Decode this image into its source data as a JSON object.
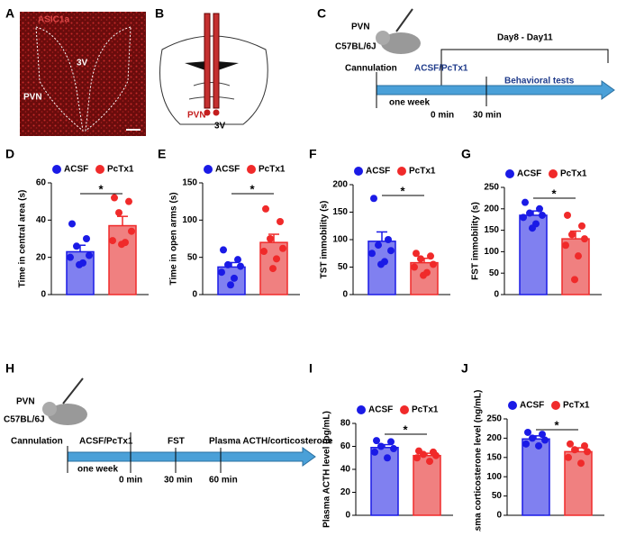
{
  "chart_data": [
    {
      "type": "bar",
      "label": "D",
      "ylabel": "Time in central area (s)",
      "ylim": [
        0,
        60
      ],
      "yticks": [
        0,
        20,
        40,
        60
      ],
      "annotation": "*",
      "series": [
        {
          "name": "ACSF",
          "color": "#1a1ae6",
          "fill": "#8080f0",
          "values": [
            23
          ],
          "errors": [
            3.5
          ],
          "points": [
            38,
            30,
            26,
            21,
            20,
            17,
            16
          ]
        },
        {
          "name": "PcTx1",
          "color": "#f02a2a",
          "fill": "#f08080",
          "values": [
            37
          ],
          "errors": [
            5
          ],
          "points": [
            52,
            50,
            44,
            34,
            29,
            28,
            27
          ]
        }
      ]
    },
    {
      "type": "bar",
      "label": "E",
      "ylabel": "Time in open arms (s)",
      "ylim": [
        0,
        150
      ],
      "yticks": [
        0,
        50,
        100,
        150
      ],
      "annotation": "*",
      "series": [
        {
          "name": "ACSF",
          "color": "#1a1ae6",
          "fill": "#8080f0",
          "values": [
            37
          ],
          "errors": [
            6
          ],
          "points": [
            60,
            47,
            40,
            38,
            30,
            22,
            13
          ]
        },
        {
          "name": "PcTx1",
          "color": "#f02a2a",
          "fill": "#f08080",
          "values": [
            70
          ],
          "errors": [
            11
          ],
          "points": [
            115,
            98,
            75,
            62,
            58,
            48,
            35
          ]
        }
      ]
    },
    {
      "type": "bar",
      "label": "F",
      "ylabel": "TST immobility (s)",
      "ylim": [
        0,
        200
      ],
      "yticks": [
        0,
        50,
        100,
        150,
        200
      ],
      "annotation": "*",
      "series": [
        {
          "name": "ACSF",
          "color": "#1a1ae6",
          "fill": "#8080f0",
          "values": [
            97
          ],
          "errors": [
            17
          ],
          "points": [
            175,
            100,
            90,
            80,
            75,
            60,
            55
          ]
        },
        {
          "name": "PcTx1",
          "color": "#f02a2a",
          "fill": "#f08080",
          "values": [
            58
          ],
          "errors": [
            8
          ],
          "points": [
            75,
            70,
            65,
            55,
            50,
            40,
            35
          ]
        }
      ]
    },
    {
      "type": "bar",
      "label": "G",
      "ylabel": "FST immobility (s)",
      "ylim": [
        0,
        250
      ],
      "yticks": [
        0,
        50,
        100,
        150,
        200,
        250
      ],
      "annotation": "*",
      "series": [
        {
          "name": "ACSF",
          "color": "#1a1ae6",
          "fill": "#8080f0",
          "values": [
            185
          ],
          "errors": [
            10
          ],
          "points": [
            215,
            200,
            190,
            185,
            180,
            165,
            155
          ]
        },
        {
          "name": "PcTx1",
          "color": "#f02a2a",
          "fill": "#f08080",
          "values": [
            130
          ],
          "errors": [
            18
          ],
          "points": [
            185,
            160,
            140,
            130,
            115,
            90,
            35
          ]
        }
      ]
    },
    {
      "type": "bar",
      "label": "I",
      "ylabel": "Plasma ACTH level (pg/mL)",
      "ylim": [
        0,
        80
      ],
      "yticks": [
        0,
        20,
        40,
        60,
        80
      ],
      "annotation": "*",
      "series": [
        {
          "name": "ACSF",
          "color": "#1a1ae6",
          "fill": "#8080f0",
          "values": [
            59
          ],
          "errors": [
            2.5
          ],
          "points": [
            65,
            64,
            60,
            58,
            55,
            50
          ]
        },
        {
          "name": "PcTx1",
          "color": "#f02a2a",
          "fill": "#f08080",
          "values": [
            52
          ],
          "errors": [
            2
          ],
          "points": [
            56,
            55,
            53,
            52,
            50,
            47
          ]
        }
      ]
    },
    {
      "type": "bar",
      "label": "J",
      "ylabel": "Plasma corticosterone level (ng/mL)",
      "ylim": [
        0,
        250
      ],
      "yticks": [
        0,
        50,
        100,
        150,
        200,
        250
      ],
      "annotation": "*",
      "series": [
        {
          "name": "ACSF",
          "color": "#1a1ae6",
          "fill": "#8080f0",
          "values": [
            198
          ],
          "errors": [
            8
          ],
          "points": [
            215,
            210,
            200,
            195,
            185,
            180
          ]
        },
        {
          "name": "PcTx1",
          "color": "#f02a2a",
          "fill": "#f08080",
          "values": [
            165
          ],
          "errors": [
            10
          ],
          "points": [
            185,
            180,
            170,
            165,
            150,
            135
          ]
        }
      ]
    }
  ],
  "panels": {
    "A": {
      "label": "A",
      "stain": "ASIC1a",
      "ventricle": "3V",
      "region": "PVN"
    },
    "B": {
      "label": "B",
      "region": "PVN",
      "ventricle": "3V"
    },
    "C": {
      "label": "C",
      "site": "PVN",
      "strain": "C57BL/6J",
      "step1": "Cannulation",
      "window": "Day8 - Day11",
      "drug": "ACSF/PcTx1",
      "tests": "Behavioral tests",
      "period": "one week",
      "t0": "0 min",
      "t1": "30 min"
    },
    "H": {
      "label": "H",
      "site": "PVN",
      "strain": "C57BL/6J",
      "step1": "Cannulation",
      "drug": "ACSF/PcTx1",
      "test": "FST",
      "sample": "Plasma ACTH/corticosterone",
      "period": "one week",
      "t0": "0 min",
      "t1": "30 min",
      "t2": "60 min"
    }
  }
}
